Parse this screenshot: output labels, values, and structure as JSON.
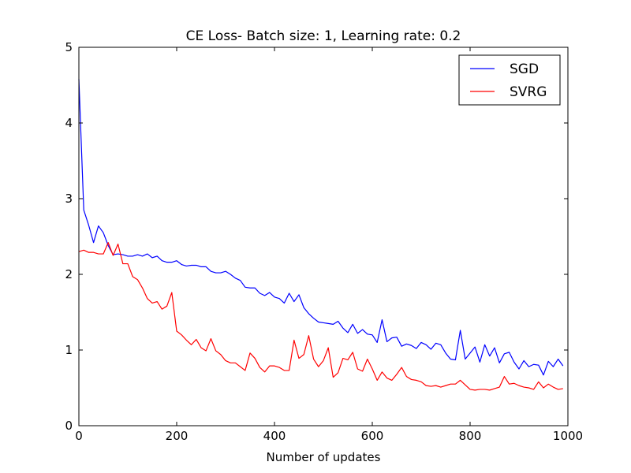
{
  "chart_data": {
    "type": "line",
    "title": "CE Loss- Batch size: 1, Learning rate: 0.2",
    "xlabel": "Number of updates",
    "ylabel": "",
    "xlim": [
      0,
      1000
    ],
    "ylim": [
      0,
      5
    ],
    "xticks": [
      0,
      200,
      400,
      600,
      800,
      1000
    ],
    "yticks": [
      0,
      1,
      2,
      3,
      4,
      5
    ],
    "grid": false,
    "legend_position": "top-right",
    "series": [
      {
        "name": "SGD",
        "color": "#0000ff",
        "x": [
          0,
          10,
          20,
          30,
          40,
          50,
          60,
          70,
          80,
          90,
          100,
          110,
          120,
          130,
          140,
          150,
          160,
          170,
          180,
          190,
          200,
          210,
          220,
          230,
          240,
          250,
          260,
          270,
          280,
          290,
          300,
          310,
          320,
          330,
          340,
          350,
          360,
          370,
          380,
          390,
          400,
          410,
          420,
          430,
          440,
          450,
          460,
          470,
          480,
          490,
          500,
          510,
          520,
          530,
          540,
          550,
          560,
          570,
          580,
          590,
          600,
          610,
          620,
          630,
          640,
          650,
          660,
          670,
          680,
          690,
          700,
          710,
          720,
          730,
          740,
          750,
          760,
          770,
          780,
          790,
          800,
          810,
          820,
          830,
          840,
          850,
          860,
          870,
          880,
          890,
          900,
          910,
          920,
          930,
          940,
          950,
          960,
          970,
          980,
          990
        ],
        "y": [
          4.58,
          2.85,
          2.65,
          2.42,
          2.64,
          2.55,
          2.38,
          2.26,
          2.27,
          2.26,
          2.24,
          2.24,
          2.26,
          2.24,
          2.27,
          2.22,
          2.24,
          2.18,
          2.16,
          2.16,
          2.18,
          2.13,
          2.11,
          2.12,
          2.12,
          2.1,
          2.1,
          2.04,
          2.02,
          2.02,
          2.04,
          2.0,
          1.95,
          1.92,
          1.83,
          1.82,
          1.82,
          1.75,
          1.72,
          1.76,
          1.7,
          1.68,
          1.62,
          1.75,
          1.64,
          1.73,
          1.56,
          1.48,
          1.42,
          1.37,
          1.36,
          1.35,
          1.34,
          1.38,
          1.29,
          1.23,
          1.34,
          1.22,
          1.27,
          1.21,
          1.2,
          1.1,
          1.4,
          1.11,
          1.16,
          1.17,
          1.05,
          1.08,
          1.06,
          1.02,
          1.1,
          1.07,
          1.01,
          1.09,
          1.07,
          0.96,
          0.88,
          0.87,
          1.26,
          0.88,
          0.96,
          1.04,
          0.84,
          1.07,
          0.92,
          1.03,
          0.83,
          0.95,
          0.97,
          0.84,
          0.75,
          0.86,
          0.78,
          0.81,
          0.8,
          0.67,
          0.85,
          0.78,
          0.88,
          0.79
        ]
      },
      {
        "name": "SVRG",
        "color": "#ff0000",
        "x": [
          0,
          10,
          20,
          30,
          40,
          50,
          60,
          70,
          80,
          90,
          100,
          110,
          120,
          130,
          140,
          150,
          160,
          170,
          180,
          190,
          200,
          210,
          220,
          230,
          240,
          250,
          260,
          270,
          280,
          290,
          300,
          310,
          320,
          330,
          340,
          350,
          360,
          370,
          380,
          390,
          400,
          410,
          420,
          430,
          440,
          450,
          460,
          470,
          480,
          490,
          500,
          510,
          520,
          530,
          540,
          550,
          560,
          570,
          580,
          590,
          600,
          610,
          620,
          630,
          640,
          650,
          660,
          670,
          680,
          690,
          700,
          710,
          720,
          730,
          740,
          750,
          760,
          770,
          780,
          790,
          800,
          810,
          820,
          830,
          840,
          850,
          860,
          870,
          880,
          890,
          900,
          910,
          920,
          930,
          940,
          950,
          960,
          970,
          980,
          990
        ],
        "y": [
          2.3,
          2.32,
          2.29,
          2.29,
          2.27,
          2.27,
          2.42,
          2.25,
          2.4,
          2.14,
          2.14,
          1.97,
          1.93,
          1.82,
          1.68,
          1.62,
          1.64,
          1.54,
          1.58,
          1.76,
          1.25,
          1.2,
          1.13,
          1.07,
          1.14,
          1.03,
          0.99,
          1.15,
          0.99,
          0.94,
          0.86,
          0.83,
          0.83,
          0.78,
          0.73,
          0.96,
          0.89,
          0.77,
          0.71,
          0.79,
          0.79,
          0.77,
          0.73,
          0.73,
          1.13,
          0.89,
          0.94,
          1.19,
          0.88,
          0.78,
          0.86,
          1.03,
          0.64,
          0.7,
          0.89,
          0.87,
          0.97,
          0.75,
          0.72,
          0.88,
          0.75,
          0.6,
          0.71,
          0.63,
          0.6,
          0.68,
          0.77,
          0.65,
          0.61,
          0.6,
          0.58,
          0.53,
          0.52,
          0.53,
          0.51,
          0.53,
          0.55,
          0.55,
          0.6,
          0.54,
          0.48,
          0.47,
          0.48,
          0.48,
          0.47,
          0.49,
          0.51,
          0.65,
          0.55,
          0.56,
          0.53,
          0.51,
          0.5,
          0.48,
          0.58,
          0.5,
          0.55,
          0.51,
          0.48,
          0.49
        ]
      }
    ]
  }
}
